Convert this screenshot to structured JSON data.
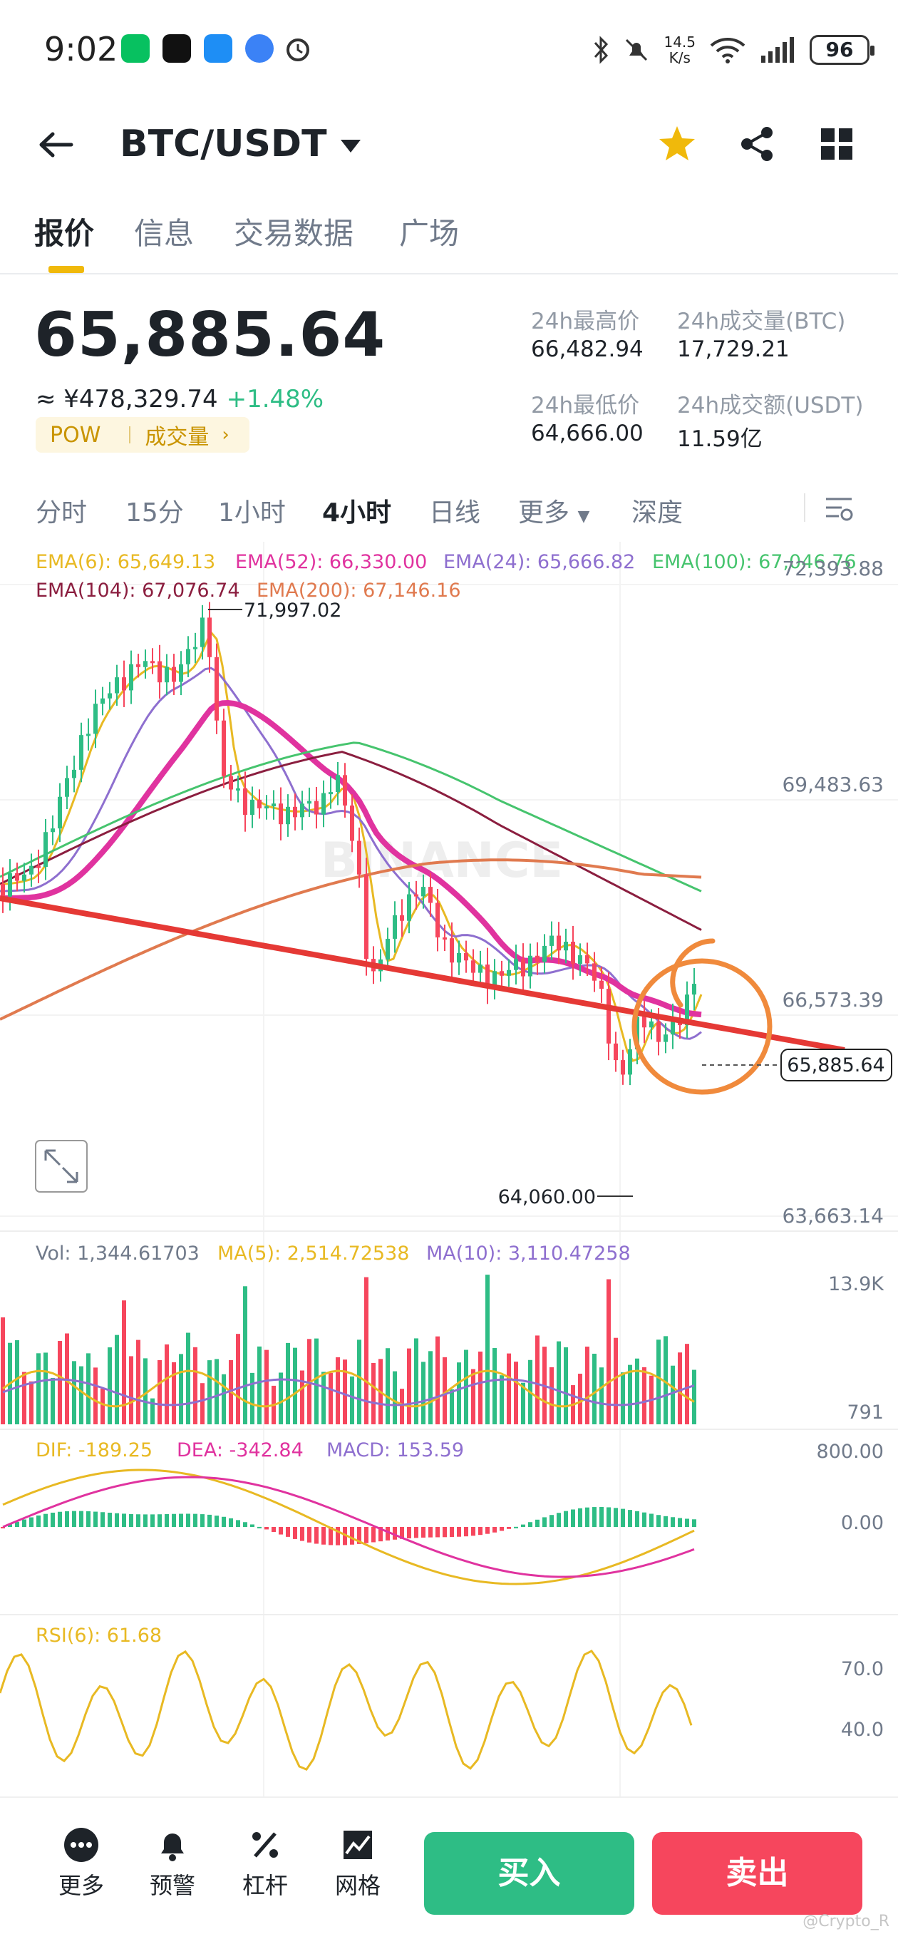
{
  "status_bar": {
    "time": "9:02",
    "net_speed_value": "14.5",
    "net_speed_unit": "K/s",
    "battery": "96"
  },
  "header": {
    "pair": "BTC/USDT"
  },
  "tabs": [
    "报价",
    "信息",
    "交易数据",
    "广场"
  ],
  "price": {
    "last": "65,885.64",
    "fiat": "≈ ¥478,329.74",
    "change": "+1.48%",
    "tag_pow": "POW",
    "tag_volume": "成交量"
  },
  "stats": {
    "high_label": "24h最高价",
    "high_value": "66,482.94",
    "vol_btc_label": "24h成交量(BTC)",
    "vol_btc_value": "17,729.21",
    "low_label": "24h最低价",
    "low_value": "64,666.00",
    "vol_usdt_label": "24h成交额(USDT)",
    "vol_usdt_value": "11.59亿"
  },
  "timeframes": [
    "分时",
    "15分",
    "1小时",
    "4小时",
    "日线",
    "更多",
    "深度"
  ],
  "timeframe_active": "4小时",
  "indicators": {
    "ema6": "EMA(6): 65,649.13",
    "ema52": "EMA(52): 66,330.00",
    "ema24": "EMA(24): 65,666.82",
    "ema100": "EMA(100): 67,046.76",
    "ema104": "EMA(104): 67,076.74",
    "ema200": "EMA(200): 67,146.16"
  },
  "chart_data": {
    "type": "candlestick",
    "interval": "4小时",
    "price_axis_labels": [
      "72,393.88",
      "69,483.63",
      "66,573.39",
      "63,663.14"
    ],
    "current_price": "65,885.64",
    "high_marker": "71,997.02",
    "low_marker": "64,060.00",
    "watermark": "BINANCE",
    "volume": {
      "vol_label": "Vol: 1,344.61703",
      "ma5_label": "MA(5): 2,514.72538",
      "ma10_label": "MA(10): 3,110.47258",
      "axis_labels": [
        "13.9K",
        "791"
      ]
    },
    "macd": {
      "dif_label": "DIF: -189.25",
      "dea_label": "DEA: -342.84",
      "macd_label": "MACD: 153.59",
      "axis_labels": [
        "800.00",
        "0.00"
      ]
    },
    "rsi": {
      "label": "RSI(6): 61.68",
      "axis_labels": [
        "70.0",
        "40.0"
      ],
      "last": 61.68
    },
    "colors": {
      "up": "#2ebd85",
      "down": "#f6465d",
      "ema6": "#e8b923",
      "ema52": "#e0339f",
      "ema24": "#8e6fcf",
      "ema100": "#46c46e",
      "ema104": "#8b1e3f",
      "ema200": "#e07a4f",
      "annotation": "#f08a3c",
      "trendline": "#e53935"
    }
  },
  "footer": {
    "more": "更多",
    "alert": "预警",
    "leverage": "杠杆",
    "grid": "网格",
    "buy": "买入",
    "sell": "卖出",
    "watermark": "@Crypto_R"
  }
}
